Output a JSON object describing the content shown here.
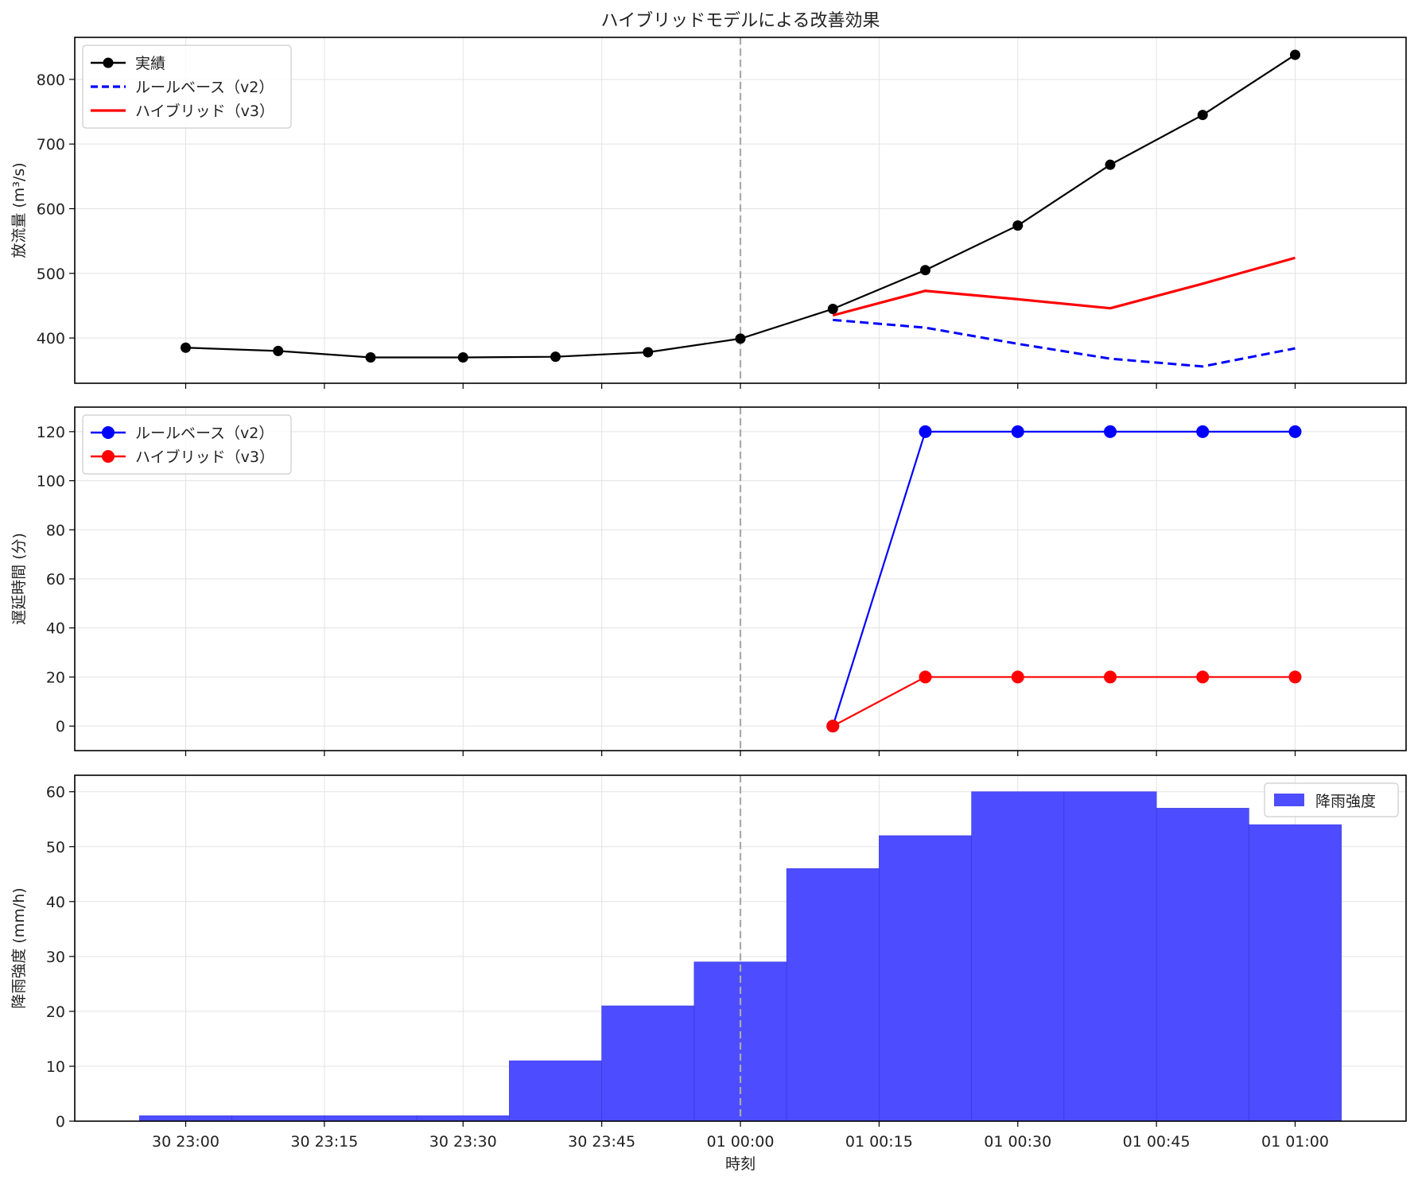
{
  "chart_data": [
    {
      "type": "line",
      "title": "ハイブリッドモデルによる改善効果",
      "ylabel": "放流量 (m³/s)",
      "ylim": [
        330,
        865
      ],
      "yticks": [
        400,
        500,
        600,
        700,
        800
      ],
      "grid": true,
      "legend_position": "top-left",
      "reference_line": {
        "x": "01 00:00",
        "style": "dashed",
        "color": "#aaaaaa"
      },
      "series": [
        {
          "name": "実績",
          "color": "#000000",
          "style": "solid-marker",
          "points": [
            [
              "30 23:00",
              385
            ],
            [
              "30 23:10",
              380
            ],
            [
              "30 23:20",
              370
            ],
            [
              "30 23:30",
              370
            ],
            [
              "30 23:40",
              371
            ],
            [
              "30 23:50",
              378
            ],
            [
              "01 00:00",
              399
            ],
            [
              "01 00:10",
              445
            ],
            [
              "01 00:20",
              505
            ],
            [
              "01 00:30",
              574
            ],
            [
              "01 00:40",
              668
            ],
            [
              "01 00:50",
              745
            ],
            [
              "01 01:00",
              838
            ]
          ]
        },
        {
          "name": "ルールベース（v2）",
          "color": "#0000ff",
          "style": "dashed",
          "points": [
            [
              "01 00:10",
              428
            ],
            [
              "01 00:20",
              416
            ],
            [
              "01 00:30",
              391
            ],
            [
              "01 00:40",
              368
            ],
            [
              "01 00:50",
              356
            ],
            [
              "01 01:00",
              384
            ]
          ]
        },
        {
          "name": "ハイブリッド（v3）",
          "color": "#ff0000",
          "style": "solid",
          "points": [
            [
              "01 00:10",
              435
            ],
            [
              "01 00:20",
              473
            ],
            [
              "01 00:30",
              460
            ],
            [
              "01 00:40",
              446
            ],
            [
              "01 00:50",
              484
            ],
            [
              "01 01:00",
              524
            ]
          ]
        }
      ]
    },
    {
      "type": "line",
      "ylabel": "遅延時間 (分)",
      "ylim": [
        -10,
        130
      ],
      "yticks": [
        0,
        20,
        40,
        60,
        80,
        100,
        120
      ],
      "grid": true,
      "legend_position": "top-left",
      "reference_line": {
        "x": "01 00:00",
        "style": "dashed",
        "color": "#aaaaaa"
      },
      "series": [
        {
          "name": "ルールベース（v2）",
          "color": "#0000ff",
          "style": "solid-marker",
          "points": [
            [
              "01 00:10",
              0
            ],
            [
              "01 00:20",
              120
            ],
            [
              "01 00:30",
              120
            ],
            [
              "01 00:40",
              120
            ],
            [
              "01 00:50",
              120
            ],
            [
              "01 01:00",
              120
            ]
          ]
        },
        {
          "name": "ハイブリッド（v3）",
          "color": "#ff0000",
          "style": "solid-marker",
          "points": [
            [
              "01 00:10",
              0
            ],
            [
              "01 00:20",
              20
            ],
            [
              "01 00:30",
              20
            ],
            [
              "01 00:40",
              20
            ],
            [
              "01 00:50",
              20
            ],
            [
              "01 01:00",
              20
            ]
          ]
        }
      ]
    },
    {
      "type": "bar",
      "xlabel": "時刻",
      "ylabel": "降雨強度 (mm/h)",
      "ylim": [
        0,
        63
      ],
      "yticks": [
        0,
        10,
        20,
        30,
        40,
        50,
        60
      ],
      "grid": true,
      "legend_position": "top-right",
      "reference_line": {
        "x": "01 00:00",
        "style": "dashed",
        "color": "#aaaaaa"
      },
      "series": [
        {
          "name": "降雨強度",
          "color": "#4d4dff",
          "points": [
            [
              "30 23:00",
              1
            ],
            [
              "30 23:10",
              1
            ],
            [
              "30 23:20",
              1
            ],
            [
              "30 23:30",
              1
            ],
            [
              "30 23:40",
              11
            ],
            [
              "30 23:50",
              21
            ],
            [
              "01 00:00",
              29
            ],
            [
              "01 00:10",
              46
            ],
            [
              "01 00:20",
              52
            ],
            [
              "01 00:30",
              60
            ],
            [
              "01 00:40",
              60
            ],
            [
              "01 00:50",
              57
            ],
            [
              "01 01:00",
              54
            ]
          ]
        }
      ]
    }
  ],
  "x_axis": {
    "range": [
      "30 22:48",
      "01 01:12"
    ],
    "tick_labels": [
      "30 23:00",
      "30 23:15",
      "30 23:30",
      "30 23:45",
      "01 00:00",
      "01 00:15",
      "01 00:30",
      "01 00:45",
      "01 01:00"
    ]
  }
}
